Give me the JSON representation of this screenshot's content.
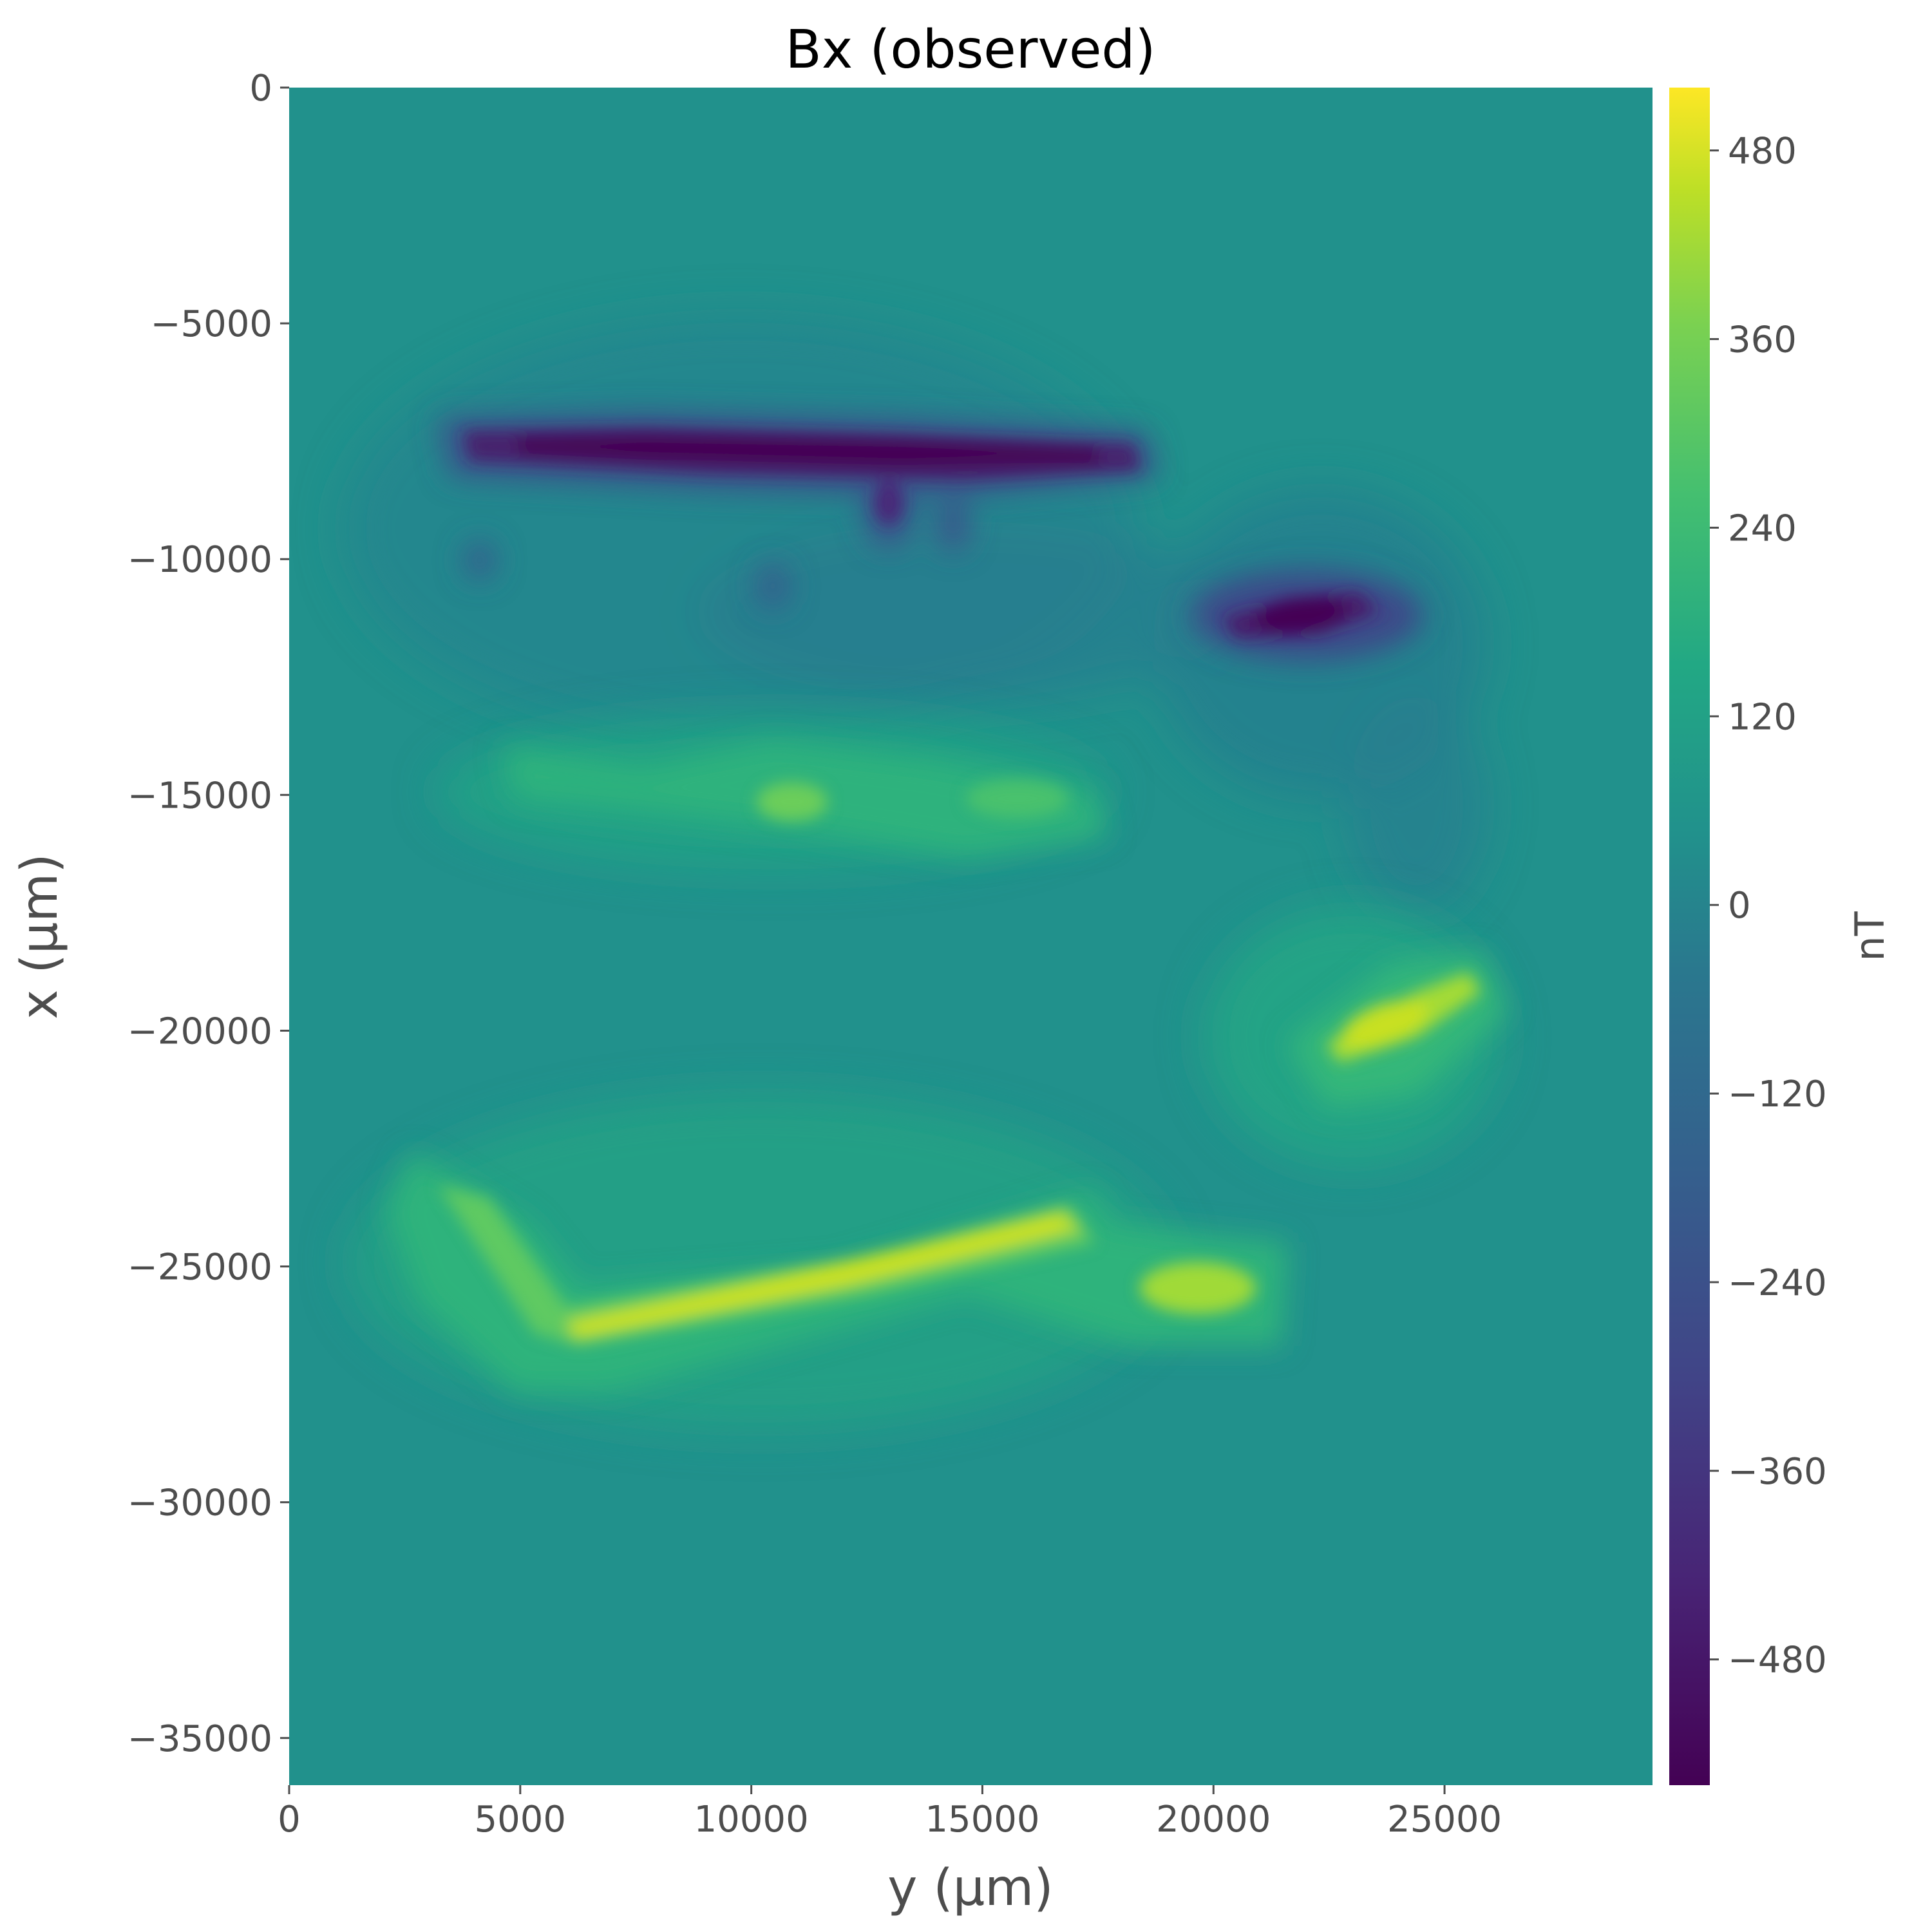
{
  "chart_data": {
    "type": "heatmap",
    "title": "Bx (observed)",
    "xlabel": "y (μm)",
    "ylabel": "x (μm)",
    "xlim": [
      0,
      29500
    ],
    "ylim": [
      -36000,
      0
    ],
    "x_ticks": [
      0,
      5000,
      10000,
      15000,
      20000,
      25000
    ],
    "x_tick_labels": [
      "0",
      "5000",
      "10000",
      "15000",
      "20000",
      "25000"
    ],
    "y_ticks": [
      0,
      -5000,
      -10000,
      -15000,
      -20000,
      -25000,
      -30000,
      -35000
    ],
    "y_tick_labels": [
      "0",
      "−5000",
      "−10000",
      "−15000",
      "−20000",
      "−25000",
      "−30000",
      "−35000"
    ],
    "colorbar": {
      "label": "nT",
      "colormap": "viridis",
      "range": [
        -560,
        520
      ],
      "ticks": [
        480,
        360,
        240,
        120,
        0,
        -120,
        -240,
        -360,
        -480
      ],
      "tick_labels": [
        "480",
        "360",
        "240",
        "120",
        "0",
        "−120",
        "−240",
        "−360",
        "−480"
      ]
    },
    "features": [
      {
        "kind": "negative",
        "y_start": 3600,
        "y_end": 18500,
        "x_center": -7600,
        "peak_nT": -520
      },
      {
        "kind": "negative",
        "y_start": 20000,
        "y_end": 24500,
        "x_center": -11200,
        "peak_nT": -440
      },
      {
        "kind": "positive",
        "y_start": 3200,
        "y_end": 6500,
        "x_start": -23500,
        "x_end": -26400,
        "peak_nT": 360
      },
      {
        "kind": "positive",
        "y_start": 6500,
        "y_end": 17500,
        "x_start": -26400,
        "x_end": -24200,
        "peak_nT": 480
      },
      {
        "kind": "positive",
        "y_start": 19000,
        "y_end": 20600,
        "x_center": -25700,
        "peak_nT": 400
      },
      {
        "kind": "positive",
        "y_start": 22200,
        "y_end": 25200,
        "x_start": -20300,
        "x_end": -19100,
        "peak_nT": 440
      },
      {
        "kind": "positive",
        "y_start": 5000,
        "y_end": 18000,
        "x_center": -14800,
        "peak_nT": 160
      }
    ]
  }
}
